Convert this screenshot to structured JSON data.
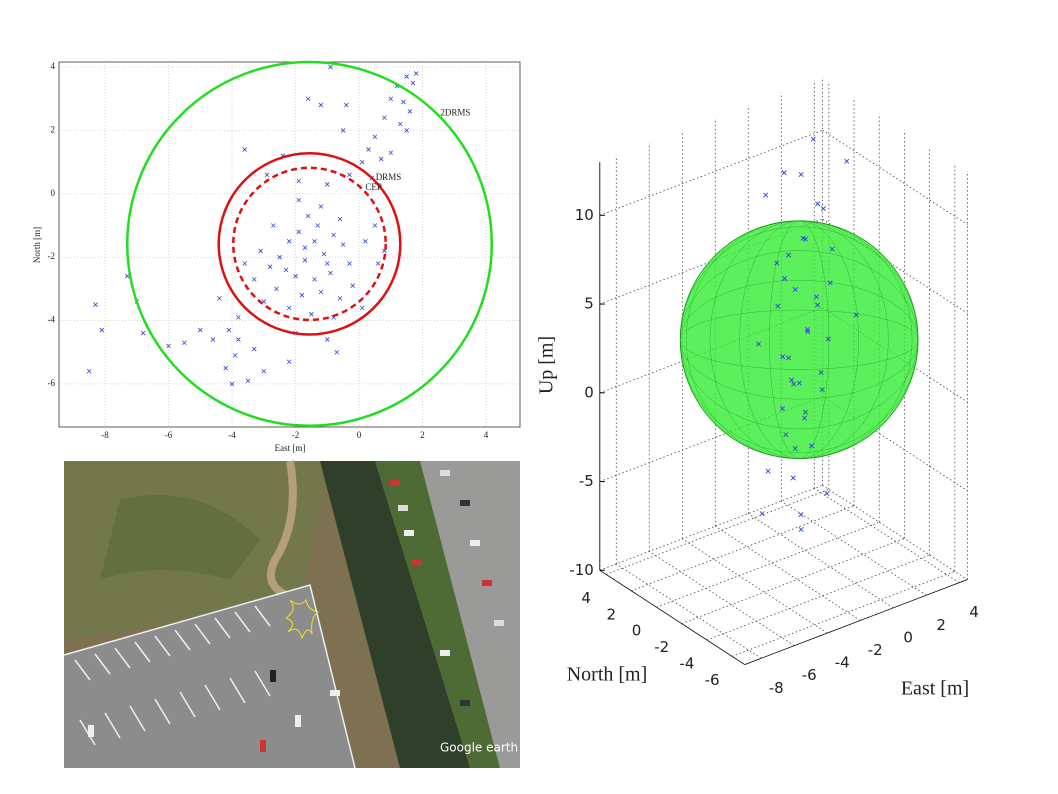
{
  "chart_data": [
    {
      "type": "scatter",
      "xlabel": "East [m]",
      "ylabel": "North [m]",
      "xlim": [
        -9.45,
        5.07
      ],
      "ylim": [
        -7.36,
        4.16
      ],
      "xticks": [
        -8,
        -6,
        -4,
        -2,
        0,
        2,
        4
      ],
      "yticks": [
        -6,
        -4,
        -2,
        0,
        2,
        4
      ],
      "grid": true,
      "series": [
        {
          "color": "#3344dd",
          "x": [
            1.5,
            1.7,
            1.8,
            1.2,
            1.0,
            1.4,
            1.6,
            1.3,
            1.5,
            0.8,
            0.5,
            0.3,
            1.0,
            0.7,
            -0.4,
            -1.2,
            -0.9,
            -1.6,
            -0.5,
            0.1,
            -0.3,
            0.4,
            -3.6,
            -2.4,
            -1.9,
            -1.0,
            -2.9,
            -1.2,
            -1.6,
            -1.9,
            -2.2,
            -1.3,
            -0.8,
            -0.5,
            -2.5,
            -1.7,
            -1.1,
            -0.3,
            0.2,
            0.5,
            -2.8,
            -3.1,
            -2.0,
            -1.4,
            -0.9,
            -0.2,
            0.6,
            -2.6,
            -1.8,
            -1.2,
            -0.6,
            0.1,
            -3.3,
            -3.0,
            -2.2,
            -1.5,
            -0.8,
            -2.7,
            -1.9,
            -1.4,
            -0.6,
            -3.6,
            0.8,
            -2.3,
            -1.0,
            -1.7,
            -3.8,
            -4.1,
            -4.6,
            -5.5,
            -6.0,
            -3.9,
            -4.2,
            -3.5,
            -4.0,
            -3.0,
            -2.2,
            -1.0,
            -0.7,
            -2.0,
            -5.0,
            -6.8,
            -7.3,
            -7.0,
            -8.3,
            -8.1,
            -8.5,
            -4.4,
            -3.8,
            -3.3
          ],
          "y": [
            3.7,
            3.5,
            3.8,
            3.4,
            3.0,
            2.9,
            2.6,
            2.2,
            2.0,
            2.4,
            1.8,
            1.4,
            1.3,
            1.1,
            2.8,
            2.8,
            4.0,
            3.0,
            2.0,
            1.0,
            0.6,
            0.5,
            1.4,
            1.2,
            0.4,
            0.3,
            0.6,
            -0.4,
            -0.7,
            -1.2,
            -1.5,
            -1.0,
            -1.3,
            -1.6,
            -2.0,
            -2.1,
            -1.9,
            -2.2,
            -1.5,
            -1.0,
            -2.3,
            -1.8,
            -2.6,
            -2.7,
            -2.5,
            -2.9,
            -2.2,
            -3.0,
            -3.2,
            -3.1,
            -3.3,
            -3.6,
            -2.7,
            -3.4,
            -3.6,
            -3.8,
            -3.9,
            -1.0,
            -0.2,
            -1.5,
            -0.8,
            -2.2,
            -1.8,
            -2.4,
            -2.2,
            -1.7,
            -3.9,
            -4.3,
            -4.6,
            -4.7,
            -4.8,
            -5.1,
            -5.5,
            -5.9,
            -6.0,
            -5.6,
            -5.3,
            -4.6,
            -5.0,
            -4.4,
            -4.3,
            -4.4,
            -2.6,
            -3.4,
            -3.5,
            -4.3,
            -5.6,
            -3.3,
            -4.6,
            -4.9
          ]
        }
      ],
      "circles": [
        {
          "label": "2DRMS",
          "x": -1.56,
          "y": -1.58,
          "radius": 5.74,
          "color": "#22dd22",
          "dashed": false
        },
        {
          "label": "DRMS",
          "x": -1.56,
          "y": -1.58,
          "radius": 2.86,
          "color": "#dd1111",
          "dashed": false
        },
        {
          "label": "CEP",
          "x": -1.56,
          "y": -1.58,
          "radius": 2.4,
          "color": "#dd1111",
          "dashed": true
        }
      ]
    },
    {
      "type": "scatter3d",
      "xlabel": "East [m]",
      "ylabel": "North [m]",
      "zlabel": "Up [m]",
      "xlim": [
        -9,
        4.5
      ],
      "ylim": [
        -7,
        4.5
      ],
      "zlim": [
        -10,
        13
      ],
      "xticks": [
        -8,
        -6,
        -4,
        -2,
        0,
        2,
        4
      ],
      "yticks": [
        -6,
        -4,
        -2,
        0,
        2,
        4
      ],
      "zticks": [
        -10,
        -5,
        0,
        5,
        10
      ],
      "grid": true,
      "sphere": {
        "x": -1.5,
        "y": -1.5,
        "z": 3.1,
        "radius": 6.7,
        "color": "#33ee33"
      },
      "series": [
        {
          "color": "#3344dd",
          "x": [
            -1,
            0.5,
            -0.5,
            1,
            -2,
            0,
            -1.5,
            -0.5,
            0.5,
            -1,
            -2,
            0,
            -1.2,
            -0.3,
            -1.8,
            0.3,
            -1,
            -0.6,
            -2.5,
            0.8,
            -1.3,
            -0.4,
            -1.6,
            -0.8,
            0.2,
            -1.9,
            -1.1,
            -0.2,
            -2.2,
            -0.9,
            -3,
            -1.4,
            -0.5,
            -1.7,
            -2.6,
            -1,
            -4,
            1.5,
            -3.2,
            1.2,
            -0.7,
            -2.8
          ],
          "y": [
            -1,
            0,
            1,
            -2,
            0.5,
            -1,
            -2,
            -0.5,
            -1.5,
            0,
            -1,
            -2,
            -0.8,
            -1.3,
            -0.2,
            -0.6,
            -1.5,
            -1,
            -1.5,
            -0.8,
            -0.4,
            -1.8,
            -1.2,
            -0.6,
            -1.1,
            -0.7,
            -1.4,
            -0.3,
            -2.1,
            -1.7,
            -1,
            -0.9,
            -2.4,
            -1.9,
            0,
            -1,
            -3,
            0.5,
            -0.5,
            -2.5,
            0.6,
            -2.6
          ],
          "z": [
            12,
            13,
            11,
            12.5,
            10.5,
            10,
            9,
            8,
            7.5,
            7,
            6.5,
            6,
            5.5,
            5,
            4.5,
            4,
            3.5,
            3,
            2.5,
            2,
            1.5,
            1,
            0.5,
            0,
            -0.5,
            -1,
            -1.5,
            -2,
            -2.5,
            -3,
            -4,
            -5,
            -5.5,
            -6.5,
            -7,
            -8,
            9,
            8.5,
            3,
            4,
            -3.5,
            1.8
          ]
        }
      ]
    }
  ],
  "photo": {
    "watermark": "Google earth"
  }
}
